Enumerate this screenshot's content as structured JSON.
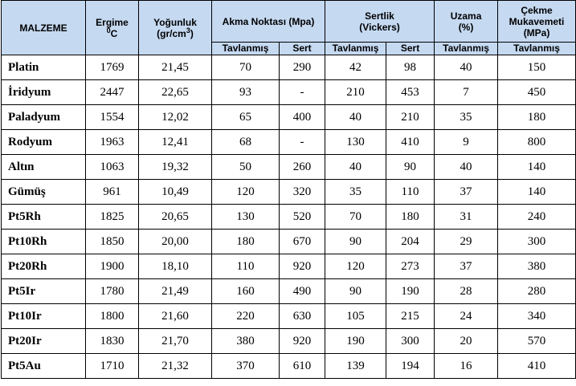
{
  "header": {
    "material": "MALZEME",
    "melting_line1": "Ergime",
    "melting_sup": "0",
    "melting_unit": "C",
    "density_line1": "Yoğunluk",
    "density_unit_pre": "(gr/cm",
    "density_sup": "3",
    "density_unit_post": ")",
    "yield": "Akma Noktası (Mpa)",
    "hardness_line1": "Sertlik",
    "hardness_line2": "(Vickers)",
    "elongation_line1": "Uzama",
    "elongation_line2": "(%)",
    "tensile_line1": "Çekme",
    "tensile_line2": "Mukavemeti",
    "tensile_line3": "(MPa)",
    "annealed": "Tavlanmış",
    "hard": "Sert"
  },
  "rows": [
    {
      "name": "Platin",
      "melting": "1769",
      "density": "21,45",
      "yield_annealed": "70",
      "yield_hard": "290",
      "hv_annealed": "42",
      "hv_hard": "98",
      "elongation": "40",
      "tensile": "150"
    },
    {
      "name": "İridyum",
      "melting": "2447",
      "density": "22,65",
      "yield_annealed": "93",
      "yield_hard": "-",
      "hv_annealed": "210",
      "hv_hard": "453",
      "elongation": "7",
      "tensile": "450"
    },
    {
      "name": "Paladyum",
      "melting": "1554",
      "density": "12,02",
      "yield_annealed": "65",
      "yield_hard": "400",
      "hv_annealed": "40",
      "hv_hard": "210",
      "elongation": "35",
      "tensile": "180"
    },
    {
      "name": "Rodyum",
      "melting": "1963",
      "density": "12,41",
      "yield_annealed": "68",
      "yield_hard": "-",
      "hv_annealed": "130",
      "hv_hard": "410",
      "elongation": "9",
      "tensile": "800"
    },
    {
      "name": "Altın",
      "melting": "1063",
      "density": "19,32",
      "yield_annealed": "50",
      "yield_hard": "260",
      "hv_annealed": "40",
      "hv_hard": "90",
      "elongation": "40",
      "tensile": "140"
    },
    {
      "name": "Gümüş",
      "melting": "961",
      "density": "10,49",
      "yield_annealed": "120",
      "yield_hard": "320",
      "hv_annealed": "35",
      "hv_hard": "110",
      "elongation": "37",
      "tensile": "140"
    },
    {
      "name": "Pt5Rh",
      "melting": "1825",
      "density": "20,65",
      "yield_annealed": "130",
      "yield_hard": "520",
      "hv_annealed": "70",
      "hv_hard": "180",
      "elongation": "31",
      "tensile": "240"
    },
    {
      "name": "Pt10Rh",
      "melting": "1850",
      "density": "20,00",
      "yield_annealed": "180",
      "yield_hard": "670",
      "hv_annealed": "90",
      "hv_hard": "204",
      "elongation": "29",
      "tensile": "300"
    },
    {
      "name": "Pt20Rh",
      "melting": "1900",
      "density": "18,10",
      "yield_annealed": "110",
      "yield_hard": "920",
      "hv_annealed": "120",
      "hv_hard": "273",
      "elongation": "37",
      "tensile": "380"
    },
    {
      "name": "Pt5Ir",
      "melting": "1780",
      "density": "21,49",
      "yield_annealed": "160",
      "yield_hard": "490",
      "hv_annealed": "90",
      "hv_hard": "190",
      "elongation": "28",
      "tensile": "280"
    },
    {
      "name": "Pt10Ir",
      "melting": "1800",
      "density": "21,60",
      "yield_annealed": "220",
      "yield_hard": "630",
      "hv_annealed": "105",
      "hv_hard": "215",
      "elongation": "24",
      "tensile": "340"
    },
    {
      "name": "Pt20Ir",
      "melting": "1830",
      "density": "21,70",
      "yield_annealed": "380",
      "yield_hard": "920",
      "hv_annealed": "190",
      "hv_hard": "300",
      "elongation": "20",
      "tensile": "570"
    },
    {
      "name": "Pt5Au",
      "melting": "1710",
      "density": "21,32",
      "yield_annealed": "370",
      "yield_hard": "610",
      "hv_annealed": "139",
      "hv_hard": "194",
      "elongation": "16",
      "tensile": "410"
    }
  ],
  "colors": {
    "header_bg": "#c5d9f1",
    "border": "#000000"
  }
}
